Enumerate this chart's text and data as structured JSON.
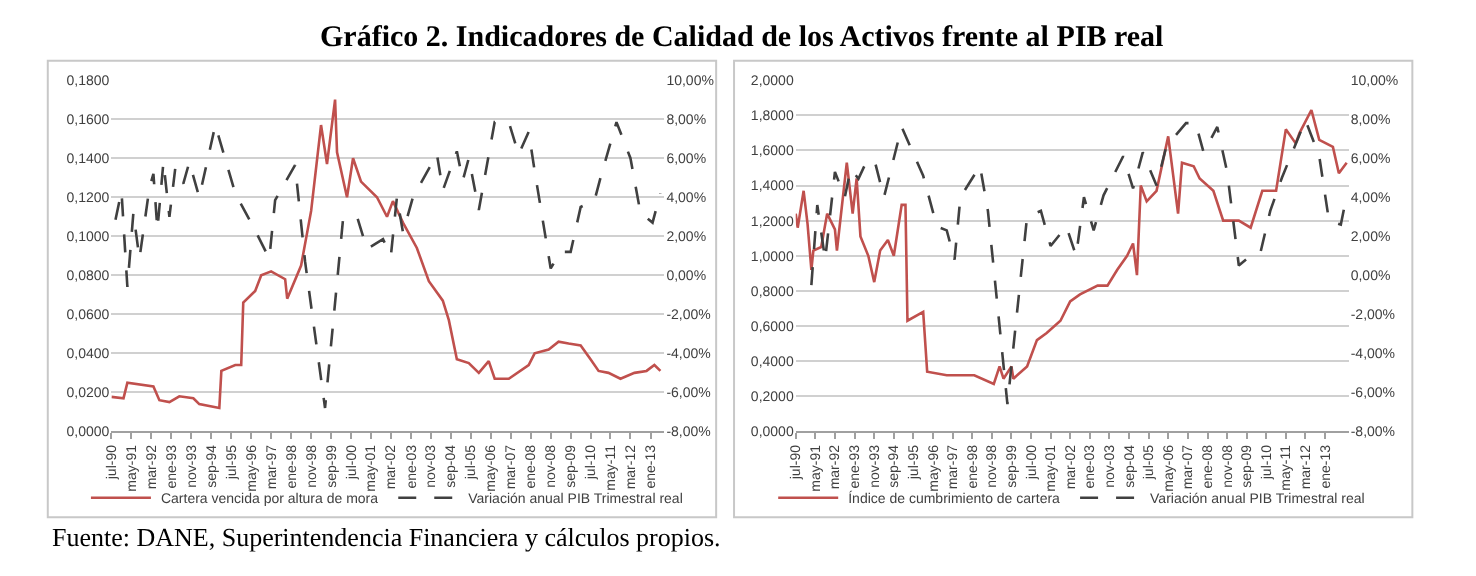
{
  "chart_data": [
    {
      "type": "line",
      "title": "Gráfico 2. Indicadores de Calidad de los Activos frente al PIB real",
      "annotations": [
        "Fuente: DANE, Superintendencia Financiera y cálculos propios."
      ],
      "xlim": [
        "1990-07",
        "2013-08"
      ],
      "xticks": [
        {
          "value": "1990-07",
          "label": "jul-90"
        },
        {
          "value": "1991-05",
          "label": "may-91"
        },
        {
          "value": "1992-03",
          "label": "mar-92"
        },
        {
          "value": "1993-01",
          "label": "ene-93"
        },
        {
          "value": "1993-11",
          "label": "nov-93"
        },
        {
          "value": "1994-09",
          "label": "sep-94"
        },
        {
          "value": "1995-07",
          "label": "jul-95"
        },
        {
          "value": "1996-05",
          "label": "may-96"
        },
        {
          "value": "1997-03",
          "label": "mar-97"
        },
        {
          "value": "1998-01",
          "label": "ene-98"
        },
        {
          "value": "1998-11",
          "label": "nov-98"
        },
        {
          "value": "1999-09",
          "label": "sep-99"
        },
        {
          "value": "2000-07",
          "label": "jul-00"
        },
        {
          "value": "2001-05",
          "label": "may-01"
        },
        {
          "value": "2002-03",
          "label": "mar-02"
        },
        {
          "value": "2003-01",
          "label": "ene-03"
        },
        {
          "value": "2003-11",
          "label": "nov-03"
        },
        {
          "value": "2004-09",
          "label": "sep-04"
        },
        {
          "value": "2005-07",
          "label": "jul-05"
        },
        {
          "value": "2006-05",
          "label": "may-06"
        },
        {
          "value": "2007-03",
          "label": "mar-07"
        },
        {
          "value": "2008-01",
          "label": "ene-08"
        },
        {
          "value": "2008-11",
          "label": "nov-08"
        },
        {
          "value": "2009-09",
          "label": "sep-09"
        },
        {
          "value": "2010-07",
          "label": "jul-10"
        },
        {
          "value": "2011-05",
          "label": "may-11"
        },
        {
          "value": "2012-03",
          "label": "mar-12"
        },
        {
          "value": "2013-01",
          "label": "ene-13"
        }
      ],
      "ylim": [
        0,
        0.18
      ],
      "yticks": [
        {
          "value": 0,
          "label": "0,0000"
        },
        {
          "value": 0.02,
          "label": "0,0200"
        },
        {
          "value": 0.04,
          "label": "0,0400"
        },
        {
          "value": 0.06,
          "label": "0,0600"
        },
        {
          "value": 0.08,
          "label": "0,0800"
        },
        {
          "value": 0.1,
          "label": "0,1000"
        },
        {
          "value": 0.12,
          "label": "0,1200"
        },
        {
          "value": 0.14,
          "label": "0,1400"
        },
        {
          "value": 0.16,
          "label": "0,1600"
        },
        {
          "value": 0.18,
          "label": "0,1800"
        }
      ],
      "y2lim": [
        -8,
        10
      ],
      "y2ticks": [
        {
          "value": -8,
          "label": "-8,00%"
        },
        {
          "value": -6,
          "label": "-6,00%"
        },
        {
          "value": -4,
          "label": "-4,00%"
        },
        {
          "value": -2,
          "label": "-2,00%"
        },
        {
          "value": 0,
          "label": "0,00%"
        },
        {
          "value": 2,
          "label": "2,00%"
        },
        {
          "value": 4,
          "label": "4,00%"
        },
        {
          "value": 6,
          "label": "6,00%"
        },
        {
          "value": 8,
          "label": "8,00%"
        },
        {
          "value": 10,
          "label": "10,00%"
        }
      ],
      "grid": "y",
      "legend": "bottom",
      "series": [
        {
          "name": "Cartera vencida por altura de mora",
          "color": "#c0504d",
          "line_style": "solid",
          "x": [
            "1990-07",
            "1991-01",
            "1991-03",
            "1992-04",
            "1992-07",
            "1992-12",
            "1993-05",
            "1993-12",
            "1994-03",
            "1995-01",
            "1995-02",
            "1995-09",
            "1995-12",
            "1996-01",
            "1996-07",
            "1996-10",
            "1997-03",
            "1997-10",
            "1997-11",
            "1998-06",
            "1998-11",
            "1999-04",
            "1999-07",
            "1999-11",
            "1999-12",
            "2000-05",
            "2000-08",
            "2000-12",
            "2001-08",
            "2002-01",
            "2002-04",
            "2002-09",
            "2003-04",
            "2003-10",
            "2004-05",
            "2004-08",
            "2004-12",
            "2005-06",
            "2005-11",
            "2006-04",
            "2006-07",
            "2007-02",
            "2007-12",
            "2008-03",
            "2008-10",
            "2009-03",
            "2009-08",
            "2010-02",
            "2010-07",
            "2010-11",
            "2011-04",
            "2011-10",
            "2012-05",
            "2012-11",
            "2013-03",
            "2013-06"
          ],
          "values": [
            0.0177,
            0.017,
            0.025,
            0.023,
            0.016,
            0.015,
            0.018,
            0.017,
            0.014,
            0.012,
            0.031,
            0.034,
            0.034,
            0.066,
            0.072,
            0.08,
            0.082,
            0.078,
            0.068,
            0.085,
            0.113,
            0.157,
            0.137,
            0.17,
            0.143,
            0.12,
            0.14,
            0.128,
            0.12,
            0.11,
            0.118,
            0.107,
            0.094,
            0.077,
            0.067,
            0.057,
            0.037,
            0.035,
            0.03,
            0.036,
            0.027,
            0.027,
            0.034,
            0.04,
            0.042,
            0.046,
            0.045,
            0.044,
            0.037,
            0.031,
            0.03,
            0.027,
            0.03,
            0.031,
            0.034,
            0.031
          ]
        },
        {
          "name": "Variación anual PIB Trimestral real",
          "color": "#404040",
          "line_style": "dashed",
          "axis": "y2",
          "x": [
            "1990-09",
            "1990-12",
            "1991-03",
            "1991-06",
            "1991-09",
            "1992-02",
            "1992-04",
            "1992-06",
            "1992-09",
            "1992-12",
            "1993-03",
            "1993-07",
            "1993-10",
            "1994-03",
            "1994-11",
            "1995-09",
            "1996-07",
            "1997-02",
            "1997-05",
            "1998-03",
            "1998-08",
            "1999-06",
            "2000-03",
            "2000-10",
            "2001-03",
            "2001-11",
            "2002-03",
            "2002-06",
            "2002-09",
            "2003-02",
            "2004-02",
            "2004-05",
            "2004-12",
            "2005-03",
            "2005-06",
            "2005-11",
            "2006-07",
            "2007-02",
            "2007-07",
            "2007-12",
            "2008-03",
            "2008-11",
            "2009-04",
            "2009-09",
            "2010-02",
            "2010-09",
            "2010-12",
            "2011-08",
            "2012-03",
            "2012-08",
            "2013-02",
            "2013-06"
          ],
          "values": [
            2.85,
            4.3,
            -0.6,
            3.2,
            0.85,
            4.5,
            5.2,
            2.35,
            5.8,
            3.0,
            5.5,
            4.7,
            5.8,
            4.0,
            7.7,
            4.2,
            2.3,
            0.85,
            3.85,
            5.65,
            0.7,
            -6.8,
            2.85,
            3.0,
            1.35,
            1.85,
            1.0,
            4.0,
            2.2,
            4.0,
            6.2,
            4.35,
            6.35,
            4.85,
            6.0,
            3.35,
            7.85,
            7.85,
            6.2,
            7.35,
            5.35,
            0.35,
            1.2,
            1.2,
            3.5,
            3.85,
            5.0,
            7.85,
            6.0,
            3.2,
            2.7,
            4.2
          ]
        }
      ]
    },
    {
      "type": "line",
      "xlim": [
        "1990-07",
        "2014-01"
      ],
      "xticks": [
        {
          "value": "1990-07",
          "label": "jul-90"
        },
        {
          "value": "1991-05",
          "label": "may-91"
        },
        {
          "value": "1992-03",
          "label": "mar-92"
        },
        {
          "value": "1993-01",
          "label": "ene-93"
        },
        {
          "value": "1993-11",
          "label": "nov-93"
        },
        {
          "value": "1994-09",
          "label": "sep-94"
        },
        {
          "value": "1995-07",
          "label": "jul-95"
        },
        {
          "value": "1996-05",
          "label": "may-96"
        },
        {
          "value": "1997-03",
          "label": "mar-97"
        },
        {
          "value": "1998-01",
          "label": "ene-98"
        },
        {
          "value": "1998-11",
          "label": "nov-98"
        },
        {
          "value": "1999-09",
          "label": "sep-99"
        },
        {
          "value": "2000-07",
          "label": "jul-00"
        },
        {
          "value": "2001-05",
          "label": "may-01"
        },
        {
          "value": "2002-03",
          "label": "mar-02"
        },
        {
          "value": "2003-01",
          "label": "ene-03"
        },
        {
          "value": "2003-11",
          "label": "nov-03"
        },
        {
          "value": "2004-09",
          "label": "sep-04"
        },
        {
          "value": "2005-07",
          "label": "jul-05"
        },
        {
          "value": "2006-05",
          "label": "may-06"
        },
        {
          "value": "2007-03",
          "label": "mar-07"
        },
        {
          "value": "2008-01",
          "label": "ene-08"
        },
        {
          "value": "2008-11",
          "label": "nov-08"
        },
        {
          "value": "2009-09",
          "label": "sep-09"
        },
        {
          "value": "2010-07",
          "label": "jul-10"
        },
        {
          "value": "2011-05",
          "label": "may-11"
        },
        {
          "value": "2012-03",
          "label": "mar-12"
        },
        {
          "value": "2013-01",
          "label": "ene-13"
        }
      ],
      "ylim": [
        0,
        2
      ],
      "yticks": [
        {
          "value": 0,
          "label": "0,0000"
        },
        {
          "value": 0.2,
          "label": "0,2000"
        },
        {
          "value": 0.4,
          "label": "0,4000"
        },
        {
          "value": 0.6,
          "label": "0,6000"
        },
        {
          "value": 0.8,
          "label": "0,8000"
        },
        {
          "value": 1.0,
          "label": "1,0000"
        },
        {
          "value": 1.2,
          "label": "1,2000"
        },
        {
          "value": 1.4,
          "label": "1,4000"
        },
        {
          "value": 1.6,
          "label": "1,6000"
        },
        {
          "value": 1.8,
          "label": "1,8000"
        },
        {
          "value": 2.0,
          "label": "2,0000"
        }
      ],
      "y2lim": [
        -8,
        10
      ],
      "y2ticks": [
        {
          "value": -8,
          "label": "-8,00%"
        },
        {
          "value": -6,
          "label": "-6,00%"
        },
        {
          "value": -4,
          "label": "-4,00%"
        },
        {
          "value": -2,
          "label": "-2,00%"
        },
        {
          "value": 0,
          "label": "0,00%"
        },
        {
          "value": 2,
          "label": "2,00%"
        },
        {
          "value": 4,
          "label": "4,00%"
        },
        {
          "value": 6,
          "label": "6,00%"
        },
        {
          "value": 8,
          "label": "8,00%"
        },
        {
          "value": 10,
          "label": "10,00%"
        }
      ],
      "grid": "y",
      "legend": "bottom",
      "series": [
        {
          "name": "Índice de cumbrimiento de cartera",
          "color": "#c0504d",
          "line_style": "solid",
          "x": [
            "1990-07",
            "1990-08",
            "1990-11",
            "1991-01",
            "1991-03",
            "1991-04",
            "1991-08",
            "1991-11",
            "1992-03",
            "1992-04",
            "1992-09",
            "1992-12",
            "1993-02",
            "1993-04",
            "1993-08",
            "1993-11",
            "1994-02",
            "1994-06",
            "1994-09",
            "1995-01",
            "1995-03",
            "1995-04",
            "1995-12",
            "1996-02",
            "1996-12",
            "1998-02",
            "1998-12",
            "1999-03",
            "1999-05",
            "1999-09",
            "1999-10",
            "2000-05",
            "2000-10",
            "2001-03",
            "2001-10",
            "2002-03",
            "2002-08",
            "2003-05",
            "2003-10",
            "2004-03",
            "2004-08",
            "2004-11",
            "2005-01",
            "2005-03",
            "2005-06",
            "2005-11",
            "2006-05",
            "2006-10",
            "2006-12",
            "2007-06",
            "2007-09",
            "2008-04",
            "2008-09",
            "2009-05",
            "2009-11",
            "2010-05",
            "2010-12",
            "2011-05",
            "2011-10",
            "2011-12",
            "2012-06",
            "2012-10",
            "2013-05",
            "2013-08",
            "2013-12"
          ],
          "values": [
            1.24,
            1.16,
            1.37,
            1.18,
            0.92,
            1.03,
            1.05,
            1.24,
            1.15,
            1.03,
            1.53,
            1.24,
            1.44,
            1.11,
            1.0,
            0.85,
            1.03,
            1.09,
            1.0,
            1.29,
            1.29,
            0.63,
            0.68,
            0.34,
            0.32,
            0.32,
            0.27,
            0.37,
            0.3,
            0.37,
            0.3,
            0.37,
            0.52,
            0.56,
            0.63,
            0.74,
            0.78,
            0.83,
            0.83,
            0.92,
            1.0,
            1.07,
            0.89,
            1.4,
            1.31,
            1.37,
            1.68,
            1.24,
            1.53,
            1.51,
            1.44,
            1.37,
            1.2,
            1.2,
            1.16,
            1.37,
            1.37,
            1.72,
            1.64,
            1.7,
            1.83,
            1.66,
            1.62,
            1.47,
            1.53
          ]
        },
        {
          "name": "Variación anual PIB Trimestral real",
          "color": "#404040",
          "line_style": "dashed",
          "axis": "y2",
          "x": [
            "1991-03",
            "1991-06",
            "1991-10",
            "1992-03",
            "1992-08",
            "1992-11",
            "1993-03",
            "1993-06",
            "1993-11",
            "1994-04",
            "1995-01",
            "1995-12",
            "1996-07",
            "1996-12",
            "1997-04",
            "1997-07",
            "1998-05",
            "1998-09",
            "1999-07",
            "2000-05",
            "2000-12",
            "2001-05",
            "2002-01",
            "2002-06",
            "2002-10",
            "2003-03",
            "2003-08",
            "2004-06",
            "2004-11",
            "2005-04",
            "2005-11",
            "2006-04",
            "2007-02",
            "2007-07",
            "2007-11",
            "2008-06",
            "2008-11",
            "2009-05",
            "2009-11",
            "2010-04",
            "2010-09",
            "2011-03",
            "2012-03",
            "2012-10",
            "2013-03",
            "2013-09",
            "2013-12"
          ],
          "values": [
            -0.5,
            3.6,
            0.8,
            5.3,
            4.0,
            5.45,
            4.95,
            5.6,
            5.95,
            4.0,
            7.6,
            5.1,
            2.5,
            2.3,
            0.8,
            4.0,
            5.6,
            3.3,
            -6.6,
            3.0,
            3.3,
            1.5,
            2.5,
            1.0,
            4.0,
            2.3,
            4.1,
            6.1,
            4.45,
            6.3,
            4.6,
            6.6,
            7.8,
            7.8,
            6.3,
            7.6,
            5.3,
            0.5,
            1.0,
            1.15,
            3.3,
            5.0,
            7.95,
            6.1,
            2.8,
            2.6,
            4.1
          ]
        }
      ]
    }
  ]
}
